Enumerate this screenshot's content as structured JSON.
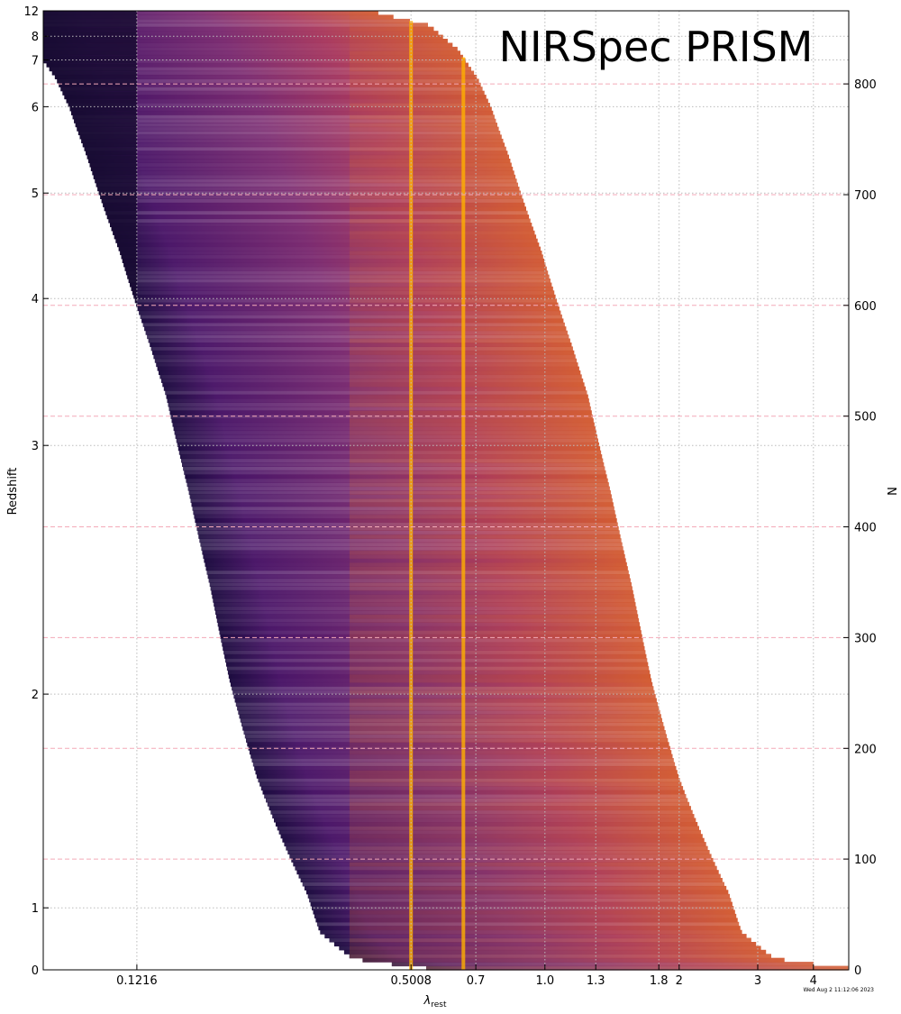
{
  "chart_data": {
    "type": "heatmap",
    "title": "NIRSpec PRISM",
    "xlabel": "λ",
    "xlabel_subscript": "rest",
    "ylabel_left": "Redshift",
    "ylabel_right": "N",
    "x_ticks": [
      "0.1216",
      "0.5008",
      "0.7",
      "1.0",
      "1.3",
      "1.8",
      "2",
      "3",
      "4"
    ],
    "x_tick_values": [
      0.1216,
      0.5008,
      0.7,
      1.0,
      1.3,
      1.8,
      2.0,
      3.0,
      4.0
    ],
    "x_scale": "log",
    "x_range": [
      0.075,
      4.8
    ],
    "y_left_ticks": [
      "0",
      "1",
      "2",
      "3",
      "4",
      "5",
      "6",
      "7",
      "8",
      "12"
    ],
    "y_left_tick_values": [
      0,
      1,
      2,
      3,
      4,
      5,
      6,
      7,
      8,
      12
    ],
    "y_right_ticks": [
      "0",
      "100",
      "200",
      "300",
      "400",
      "500",
      "600",
      "700",
      "800"
    ],
    "y_right_tick_values": [
      0,
      100,
      200,
      300,
      400,
      500,
      600,
      700,
      800
    ],
    "n_range": [
      0,
      866
    ],
    "observed_wavelength_range_um": [
      0.6,
      5.3
    ],
    "colormap": "inferno",
    "emission_lines_rest": [
      0.5008,
      0.6564
    ],
    "lyman_break_rest": 0.1216,
    "balmer_break_rest": 0.3646,
    "grid": true,
    "timestamp": "Wed Aug  2 11:12:06 2023"
  },
  "colors": {
    "line": "#ffb000",
    "grid": "#bbbbbb",
    "dashed_grid": "#f4aab8"
  }
}
